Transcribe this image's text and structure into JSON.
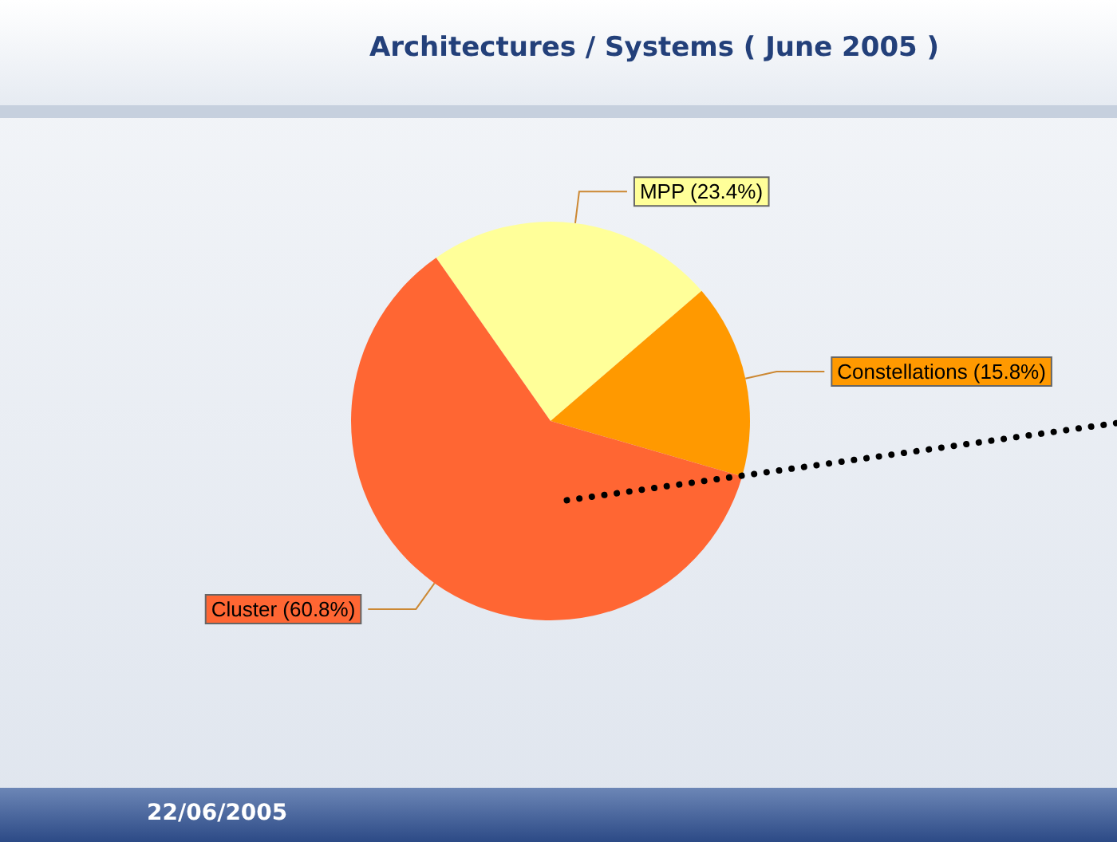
{
  "chart_data": {
    "type": "pie",
    "title": "Architectures / Systems ( June 2005 )",
    "categories": [
      "MPP",
      "Constellations",
      "Cluster"
    ],
    "values": [
      23.4,
      15.8,
      60.8
    ],
    "value_labels": [
      "(23.4%)",
      "(15.8%)",
      "(60.8%)"
    ],
    "colors": [
      "#ffff99",
      "#ff9900",
      "#ff6633"
    ],
    "annotations": [
      "22/06/2005"
    ]
  }
}
